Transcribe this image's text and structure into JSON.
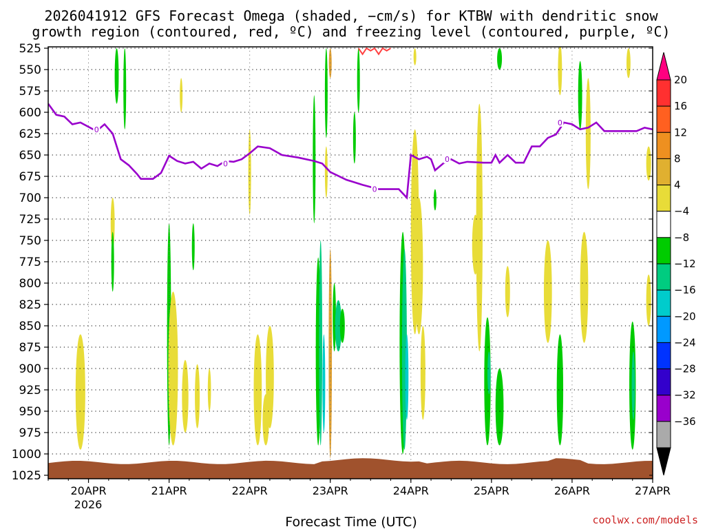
{
  "chart_data": {
    "type": "heatmap",
    "title_line1": "2026041912 GFS Forecast Omega (shaded, −cm/s) for KTBW with dendritic snow",
    "title_line2": "growth region (contoured, red, ºC) and freezing level (contoured, purple, ºC)",
    "xlabel": "Forecast Time (UTC)",
    "credit": "coolwx.com/models",
    "y_levels": [
      "525",
      "550",
      "575",
      "600",
      "625",
      "650",
      "675",
      "700",
      "725",
      "750",
      "775",
      "800",
      "825",
      "850",
      "875",
      "900",
      "925",
      "950",
      "975",
      "1000",
      "1025"
    ],
    "y_range": [
      525,
      1025
    ],
    "x_ticks": [
      "20APR",
      "21APR",
      "22APR",
      "23APR",
      "24APR",
      "25APR",
      "26APR",
      "27APR"
    ],
    "x_year": "2026",
    "x_range_days": [
      19.5,
      27.0
    ],
    "colorbar": {
      "labels": [
        "20",
        "16",
        "12",
        "8",
        "4",
        "−4",
        "−8",
        "−12",
        "−16",
        "−20",
        "−24",
        "−28",
        "−32",
        "−36"
      ],
      "colors": [
        "#ff0080",
        "#ff3030",
        "#ff6020",
        "#ee9020",
        "#e0b030",
        "#e8dc38",
        "#ffffff",
        "#00cc00",
        "#00cc80",
        "#00cccc",
        "#0099ff",
        "#0033ff",
        "#3300cc",
        "#9900cc",
        "#aaaaaa",
        "#000000"
      ]
    },
    "freezing_level": {
      "color": "#9900cc",
      "contour_label": "0",
      "points": [
        [
          19.5,
          590
        ],
        [
          19.6,
          603
        ],
        [
          19.7,
          605
        ],
        [
          19.8,
          614
        ],
        [
          19.9,
          612
        ],
        [
          20.0,
          617
        ],
        [
          20.1,
          622
        ],
        [
          20.2,
          614
        ],
        [
          20.3,
          625
        ],
        [
          20.4,
          655
        ],
        [
          20.5,
          662
        ],
        [
          20.6,
          672
        ],
        [
          20.65,
          678
        ],
        [
          20.8,
          678
        ],
        [
          20.9,
          671
        ],
        [
          21.0,
          651
        ],
        [
          21.1,
          657
        ],
        [
          21.2,
          660
        ],
        [
          21.3,
          658
        ],
        [
          21.4,
          666
        ],
        [
          21.5,
          660
        ],
        [
          21.6,
          663
        ],
        [
          21.7,
          657
        ],
        [
          21.8,
          658
        ],
        [
          21.9,
          655
        ],
        [
          22.0,
          648
        ],
        [
          22.1,
          640
        ],
        [
          22.25,
          642
        ],
        [
          22.4,
          650
        ],
        [
          22.6,
          653
        ],
        [
          22.8,
          657
        ],
        [
          22.9,
          660
        ],
        [
          23.0,
          670
        ],
        [
          23.2,
          679
        ],
        [
          23.4,
          685
        ],
        [
          23.6,
          690
        ],
        [
          23.7,
          690
        ],
        [
          23.85,
          690
        ],
        [
          23.95,
          700
        ],
        [
          24.0,
          650
        ],
        [
          24.1,
          655
        ],
        [
          24.2,
          652
        ],
        [
          24.25,
          655
        ],
        [
          24.3,
          668
        ],
        [
          24.4,
          660
        ],
        [
          24.5,
          655
        ],
        [
          24.6,
          660
        ],
        [
          24.7,
          658
        ],
        [
          24.9,
          659
        ],
        [
          25.0,
          659
        ],
        [
          25.05,
          650
        ],
        [
          25.1,
          659
        ],
        [
          25.2,
          650
        ],
        [
          25.3,
          659
        ],
        [
          25.4,
          659
        ],
        [
          25.5,
          640
        ],
        [
          25.6,
          640
        ],
        [
          25.7,
          630
        ],
        [
          25.8,
          626
        ],
        [
          25.9,
          612
        ],
        [
          26.0,
          614
        ],
        [
          26.1,
          620
        ],
        [
          26.2,
          618
        ],
        [
          26.3,
          612
        ],
        [
          26.4,
          622
        ],
        [
          26.6,
          622
        ],
        [
          26.8,
          622
        ],
        [
          26.9,
          618
        ],
        [
          27.0,
          620
        ]
      ]
    },
    "dgz_contour": {
      "color": "#ff4040",
      "points": [
        [
          23.35,
          525
        ],
        [
          23.4,
          532
        ],
        [
          23.45,
          525
        ],
        [
          23.5,
          528
        ],
        [
          23.55,
          525
        ],
        [
          23.6,
          532
        ],
        [
          23.65,
          525
        ],
        [
          23.7,
          528
        ],
        [
          23.75,
          525
        ]
      ]
    },
    "omega_features": [
      {
        "x": 19.9,
        "p": [
          860,
          995
        ],
        "w": 0.12,
        "v": 4
      },
      {
        "x": 20.3,
        "p": [
          700,
          760
        ],
        "w": 0.05,
        "v": 4
      },
      {
        "x": 20.3,
        "p": [
          740,
          810
        ],
        "w": 0.03,
        "v": -4
      },
      {
        "x": 20.35,
        "p": [
          525,
          590
        ],
        "w": 0.05,
        "v": -4
      },
      {
        "x": 20.45,
        "p": [
          525,
          620
        ],
        "w": 0.03,
        "v": -4
      },
      {
        "x": 21.0,
        "p": [
          730,
          990
        ],
        "w": 0.05,
        "v": -4
      },
      {
        "x": 21.05,
        "p": [
          810,
          990
        ],
        "w": 0.12,
        "v": 4
      },
      {
        "x": 21.15,
        "p": [
          560,
          600
        ],
        "w": 0.03,
        "v": 4
      },
      {
        "x": 21.2,
        "p": [
          890,
          975
        ],
        "w": 0.08,
        "v": 4
      },
      {
        "x": 21.3,
        "p": [
          730,
          785
        ],
        "w": 0.03,
        "v": -4
      },
      {
        "x": 21.35,
        "p": [
          895,
          970
        ],
        "w": 0.06,
        "v": 4
      },
      {
        "x": 21.5,
        "p": [
          900,
          950
        ],
        "w": 0.04,
        "v": 4
      },
      {
        "x": 22.1,
        "p": [
          860,
          990
        ],
        "w": 0.1,
        "v": 4
      },
      {
        "x": 22.2,
        "p": [
          930,
          990
        ],
        "w": 0.08,
        "v": 4
      },
      {
        "x": 22.25,
        "p": [
          850,
          970
        ],
        "w": 0.1,
        "v": 4
      },
      {
        "x": 22.0,
        "p": [
          620,
          720
        ],
        "w": 0.03,
        "v": 4
      },
      {
        "x": 22.8,
        "p": [
          580,
          730
        ],
        "w": 0.03,
        "v": -4
      },
      {
        "x": 22.85,
        "p": [
          770,
          990
        ],
        "w": 0.06,
        "v": -4
      },
      {
        "x": 22.88,
        "p": [
          750,
          990
        ],
        "w": 0.04,
        "v": -8
      },
      {
        "x": 22.92,
        "p": [
          860,
          975
        ],
        "w": 0.03,
        "v": -12
      },
      {
        "x": 22.95,
        "p": [
          640,
          700
        ],
        "w": 0.03,
        "v": 4
      },
      {
        "x": 22.95,
        "p": [
          525,
          630
        ],
        "w": 0.03,
        "v": -4
      },
      {
        "x": 23.0,
        "p": [
          760,
          1005
        ],
        "w": 0.04,
        "v": 8
      },
      {
        "x": 23.0,
        "p": [
          525,
          560
        ],
        "w": 0.03,
        "v": 8
      },
      {
        "x": 23.05,
        "p": [
          800,
          880
        ],
        "w": 0.04,
        "v": -4
      },
      {
        "x": 23.1,
        "p": [
          820,
          880
        ],
        "w": 0.08,
        "v": -8
      },
      {
        "x": 23.15,
        "p": [
          830,
          870
        ],
        "w": 0.06,
        "v": -4
      },
      {
        "x": 23.3,
        "p": [
          600,
          660
        ],
        "w": 0.03,
        "v": -4
      },
      {
        "x": 23.35,
        "p": [
          525,
          600
        ],
        "w": 0.03,
        "v": -4
      },
      {
        "x": 23.9,
        "p": [
          740,
          1000
        ],
        "w": 0.08,
        "v": -4
      },
      {
        "x": 23.92,
        "p": [
          760,
          995
        ],
        "w": 0.06,
        "v": -8
      },
      {
        "x": 23.95,
        "p": [
          860,
          960
        ],
        "w": 0.04,
        "v": -12
      },
      {
        "x": 24.05,
        "p": [
          620,
          860
        ],
        "w": 0.1,
        "v": 4
      },
      {
        "x": 24.1,
        "p": [
          700,
          860
        ],
        "w": 0.1,
        "v": 4
      },
      {
        "x": 24.15,
        "p": [
          850,
          960
        ],
        "w": 0.06,
        "v": 4
      },
      {
        "x": 24.05,
        "p": [
          525,
          545
        ],
        "w": 0.03,
        "v": 4
      },
      {
        "x": 24.3,
        "p": [
          690,
          715
        ],
        "w": 0.03,
        "v": -4
      },
      {
        "x": 24.8,
        "p": [
          720,
          790
        ],
        "w": 0.08,
        "v": 4
      },
      {
        "x": 24.85,
        "p": [
          590,
          880
        ],
        "w": 0.08,
        "v": 4
      },
      {
        "x": 24.95,
        "p": [
          840,
          990
        ],
        "w": 0.08,
        "v": -4
      },
      {
        "x": 24.97,
        "p": [
          880,
          930
        ],
        "w": 0.04,
        "v": -8
      },
      {
        "x": 25.1,
        "p": [
          900,
          990
        ],
        "w": 0.1,
        "v": -4
      },
      {
        "x": 25.1,
        "p": [
          525,
          550
        ],
        "w": 0.06,
        "v": -4
      },
      {
        "x": 25.2,
        "p": [
          780,
          840
        ],
        "w": 0.06,
        "v": 4
      },
      {
        "x": 25.7,
        "p": [
          750,
          870
        ],
        "w": 0.1,
        "v": 4
      },
      {
        "x": 25.85,
        "p": [
          520,
          580
        ],
        "w": 0.05,
        "v": 4
      },
      {
        "x": 25.85,
        "p": [
          860,
          990
        ],
        "w": 0.08,
        "v": -4
      },
      {
        "x": 26.1,
        "p": [
          540,
          620
        ],
        "w": 0.05,
        "v": -4
      },
      {
        "x": 26.15,
        "p": [
          740,
          870
        ],
        "w": 0.1,
        "v": 4
      },
      {
        "x": 26.2,
        "p": [
          560,
          690
        ],
        "w": 0.06,
        "v": 4
      },
      {
        "x": 26.7,
        "p": [
          525,
          560
        ],
        "w": 0.05,
        "v": 4
      },
      {
        "x": 26.75,
        "p": [
          845,
          995
        ],
        "w": 0.08,
        "v": -4
      },
      {
        "x": 26.76,
        "p": [
          880,
          960
        ],
        "w": 0.04,
        "v": -8
      },
      {
        "x": 26.95,
        "p": [
          640,
          680
        ],
        "w": 0.06,
        "v": 4
      },
      {
        "x": 26.95,
        "p": [
          790,
          850
        ],
        "w": 0.06,
        "v": 4
      }
    ],
    "terrain_color": "#a0522d"
  }
}
